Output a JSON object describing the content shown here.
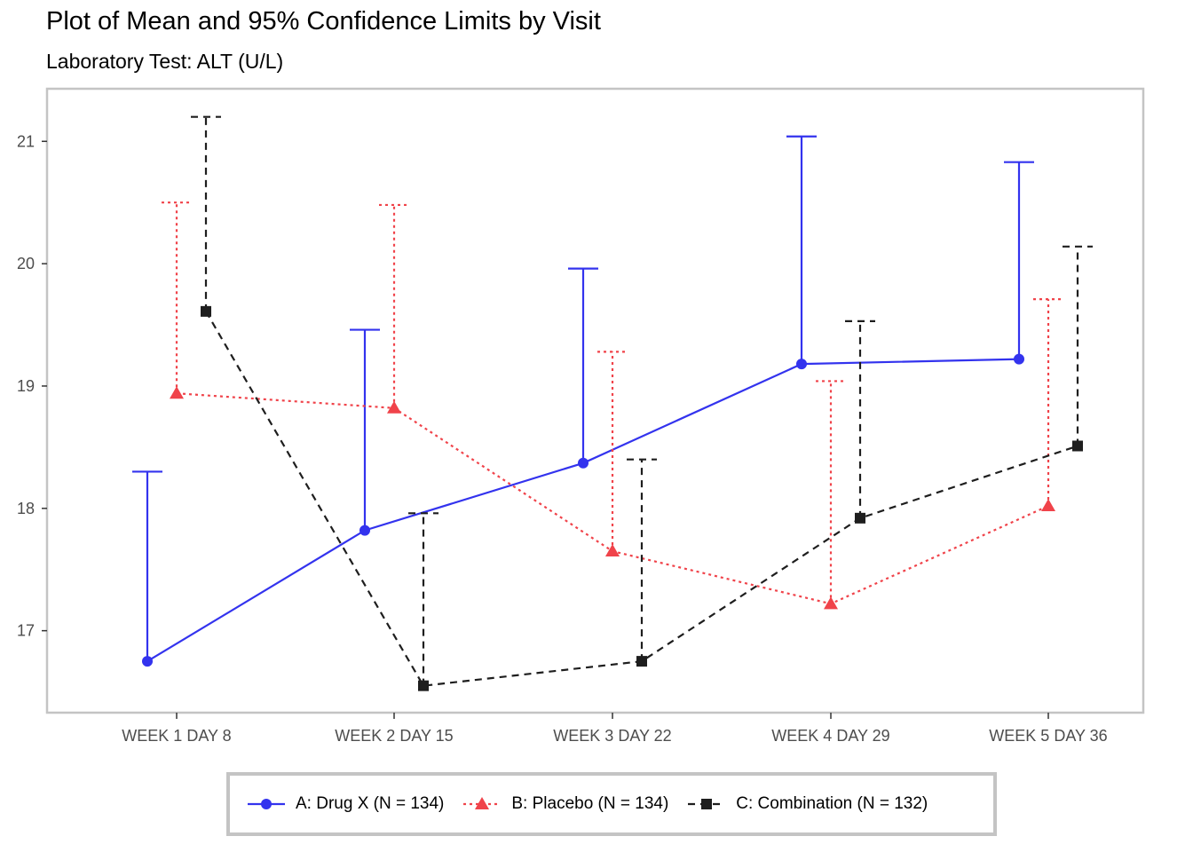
{
  "header": {
    "title": "Plot of Mean and 95% Confidence Limits by Visit",
    "subtitle": "Laboratory Test: ALT (U/L)"
  },
  "chart_data": {
    "type": "line",
    "title": "Plot of Mean and 95% Confidence Limits by Visit",
    "subtitle": "Laboratory Test: ALT (U/L)",
    "xlabel": "",
    "ylabel": "",
    "categories": [
      "WEEK 1 DAY 8",
      "WEEK 2 DAY 15",
      "WEEK 3 DAY 22",
      "WEEK 4 DAY 29",
      "WEEK 5 DAY 36"
    ],
    "y_ticks": [
      17,
      18,
      19,
      20,
      21
    ],
    "ylim": [
      16.33,
      21.43
    ],
    "grid": false,
    "legend_position": "bottom",
    "error_bars": "upper 95% confidence limit",
    "series": [
      {
        "name": "A: Drug X (N = 134)",
        "color": "#3333ee",
        "linestyle": "solid",
        "marker": "circle",
        "mean": [
          16.75,
          17.82,
          18.37,
          19.18,
          19.22
        ],
        "upper": [
          18.3,
          19.46,
          19.96,
          21.04,
          20.83
        ]
      },
      {
        "name": "B: Placebo (N = 134)",
        "color": "#f0434a",
        "linestyle": "dotted",
        "marker": "triangle",
        "mean": [
          18.94,
          18.82,
          17.65,
          17.22,
          18.02
        ],
        "upper": [
          20.5,
          20.48,
          19.28,
          19.04,
          19.71
        ]
      },
      {
        "name": "C: Combination (N = 132)",
        "color": "#1e1e1e",
        "linestyle": "dashed",
        "marker": "square",
        "mean": [
          19.61,
          16.55,
          16.75,
          17.92,
          18.51
        ],
        "upper": [
          21.2,
          17.96,
          18.4,
          19.53,
          20.14
        ]
      }
    ]
  }
}
